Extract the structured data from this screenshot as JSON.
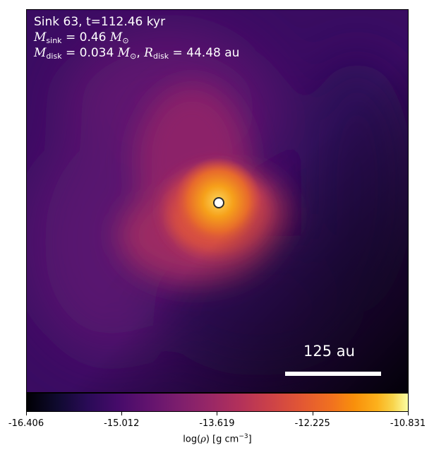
{
  "annotations": {
    "sink_label": "Sink 63, t=112.46 kyr",
    "sink_mass": "0.46",
    "disk_mass": "0.034",
    "disk_radius": "44.48",
    "mass_unit_symbol": "M",
    "sink_sub": "sink",
    "disk_sub": "disk",
    "radius_symbol": "R",
    "radius_unit": "au",
    "sun_symbol": "⊙"
  },
  "scale_bar": {
    "label": "125 au"
  },
  "colorbar": {
    "colormap": "inferno",
    "min": -16.406,
    "max": -10.831,
    "ticks": [
      "-16.406",
      "-15.012",
      "-13.619",
      "-12.225",
      "-10.831"
    ],
    "label_prefix": "log(",
    "label_rho": "ρ",
    "label_suffix": ") [g cm",
    "label_exp": "−3",
    "label_end": "]"
  },
  "colors": {
    "text_on_image": "#ffffff",
    "marker_edge": "#2a2a2a"
  }
}
